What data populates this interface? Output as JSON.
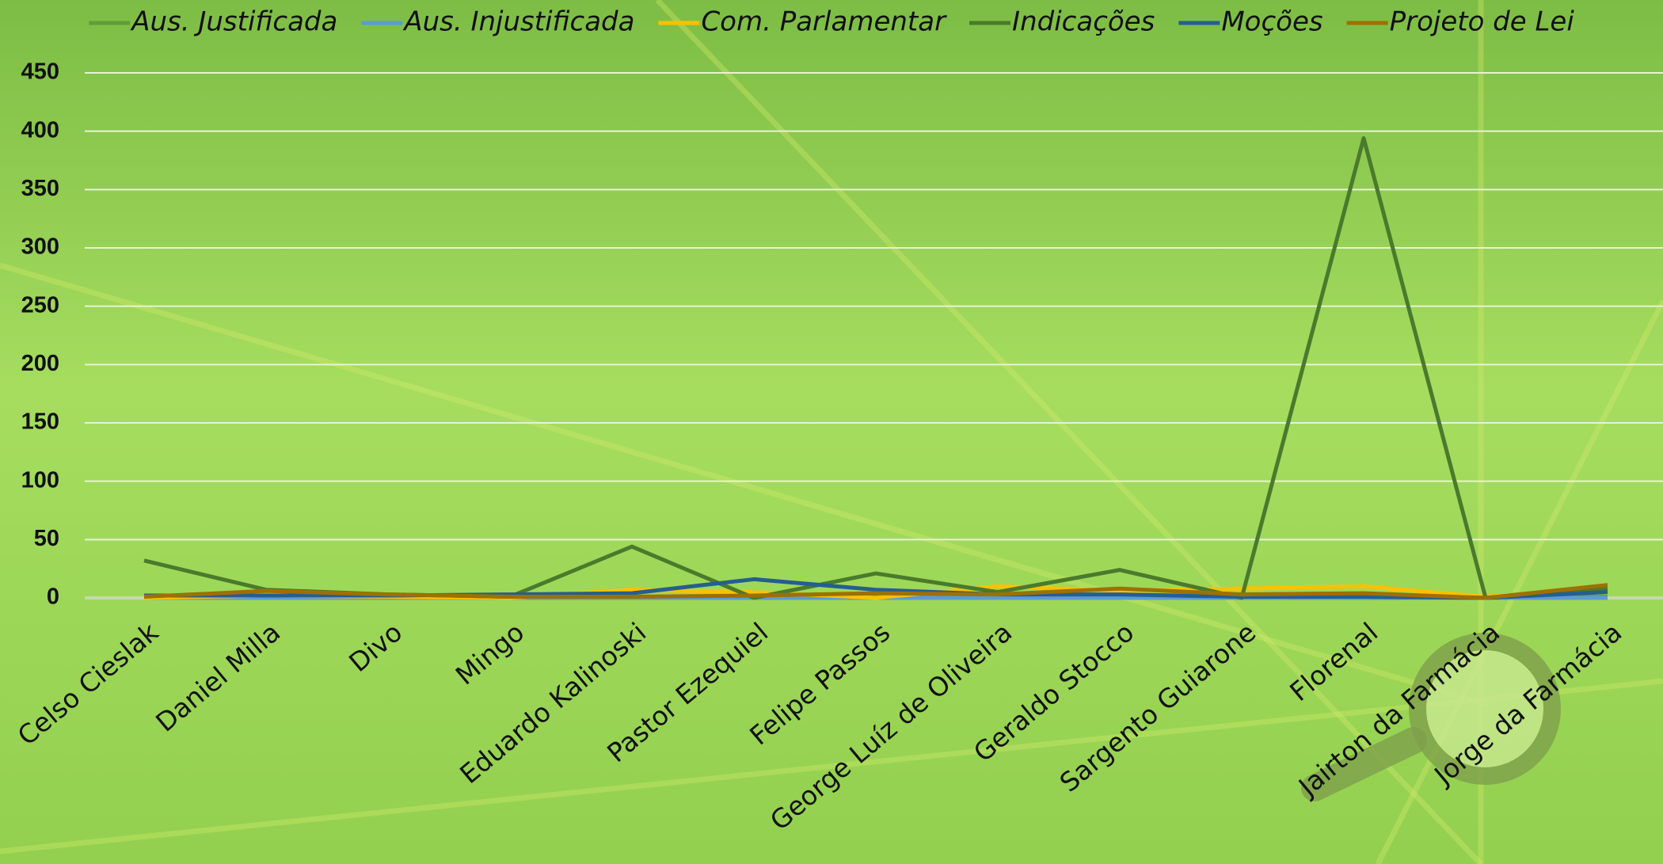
{
  "chart_data": {
    "type": "line",
    "categories": [
      "Celso Cieslak",
      "Daniel Milla",
      "Divo",
      "Mingo",
      "Eduardo Kalinoski",
      "Pastor Ezequiel",
      "Felipe Passos",
      "George Luíz de Oliveira",
      "Geraldo Stocco",
      "Sargento Guiarone",
      "Florenal",
      "Jairton da Farmácia",
      "Jorge da Farmácia"
    ],
    "series": [
      {
        "name": "Aus. Justificada",
        "color": "#5e9e3a",
        "values": [
          1,
          1,
          1,
          0,
          1,
          1,
          1,
          1,
          1,
          1,
          1,
          0,
          1
        ]
      },
      {
        "name": "Aus. Injustificada",
        "color": "#5b9bd5",
        "values": [
          0,
          0,
          0,
          0,
          0,
          0,
          0,
          0,
          0,
          0,
          0,
          0,
          0
        ]
      },
      {
        "name": "Com. Parlamentar",
        "color": "#ffc000",
        "values": [
          0,
          2,
          1,
          0,
          7,
          5,
          0,
          10,
          6,
          8,
          10,
          1,
          8
        ]
      },
      {
        "name": "Indicações",
        "color": "#4a7a2c",
        "values": [
          32,
          7,
          3,
          1,
          44,
          0,
          21,
          5,
          24,
          0,
          394,
          0,
          8
        ]
      },
      {
        "name": "Moções",
        "color": "#255e91",
        "values": [
          2,
          2,
          2,
          3,
          4,
          16,
          7,
          3,
          3,
          1,
          1,
          0,
          5
        ]
      },
      {
        "name": "Projeto de Lei",
        "color": "#9e7000",
        "values": [
          1,
          6,
          3,
          1,
          1,
          2,
          4,
          3,
          8,
          3,
          4,
          0,
          11
        ]
      }
    ],
    "ylim": [
      0,
      450
    ],
    "yticks": [
      0,
      50,
      100,
      150,
      200,
      250,
      300,
      350,
      400,
      450
    ],
    "grid": true,
    "legend": "top"
  }
}
